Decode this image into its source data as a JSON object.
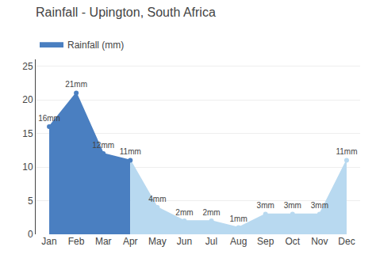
{
  "chart_data": {
    "type": "area",
    "title": "Rainfall - Upington, South Africa",
    "categories": [
      "Jan",
      "Feb",
      "Mar",
      "Apr",
      "May",
      "Jun",
      "Jul",
      "Aug",
      "Sep",
      "Oct",
      "Nov",
      "Dec"
    ],
    "series": [
      {
        "name": "Rainfall (mm)",
        "values": [
          16,
          21,
          12,
          11,
          4,
          2,
          2,
          1,
          3,
          3,
          3,
          11
        ],
        "value_labels": [
          "16mm",
          "21mm",
          "12mm",
          "11mm",
          "4mm",
          "2mm",
          "2mm",
          "1mm",
          "3mm",
          "3mm",
          "3mm",
          "11mm"
        ],
        "colors": [
          "#4a7fc1",
          "#4a7fc1",
          "#4a7fc1",
          "#4a7fc1",
          "#b8d9f0",
          "#b8d9f0",
          "#b8d9f0",
          "#b8d9f0",
          "#b8d9f0",
          "#b8d9f0",
          "#b8d9f0",
          "#b8d9f0"
        ]
      }
    ],
    "ylim": [
      0,
      26
    ],
    "yticks": [
      0,
      5,
      10,
      15,
      20,
      25
    ],
    "grid": true,
    "legend": "top left",
    "data_labels": true
  }
}
